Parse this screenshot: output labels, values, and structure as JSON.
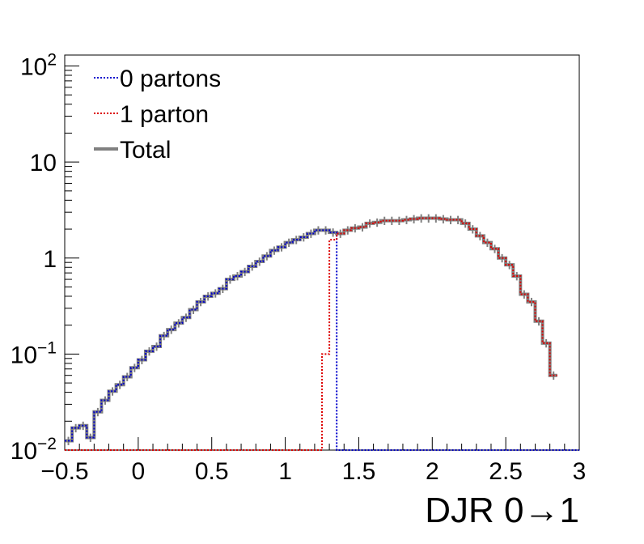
{
  "chart_data": {
    "type": "line",
    "title": "",
    "xlabel": "DJR 0→1",
    "ylabel": "",
    "xlim": [
      -0.5,
      3
    ],
    "ylim": [
      0.01,
      130
    ],
    "yscale": "log",
    "grid": false,
    "legend_position": "top-left",
    "x_ticks": [
      "−0.5",
      "0",
      "0.5",
      "1",
      "1.5",
      "2",
      "2.5",
      "3"
    ],
    "x_tick_values": [
      -0.5,
      0,
      0.5,
      1,
      1.5,
      2,
      2.5,
      3
    ],
    "y_ticks": [
      {
        "value": 0.01,
        "base": "10",
        "exp": "−2"
      },
      {
        "value": 0.1,
        "base": "10",
        "exp": "−1"
      },
      {
        "value": 1,
        "base": "1",
        "exp": ""
      },
      {
        "value": 10,
        "base": "10",
        "exp": ""
      },
      {
        "value": 100,
        "base": "10",
        "exp": "2"
      }
    ],
    "bin_width": 0.05,
    "series": [
      {
        "name": "0 partons",
        "color": "#0000cc",
        "style": "dotted",
        "x_start": -0.5,
        "values": [
          0.0125,
          0.017,
          0.018,
          0.0135,
          0.025,
          0.033,
          0.041,
          0.048,
          0.058,
          0.072,
          0.087,
          0.107,
          0.12,
          0.155,
          0.18,
          0.21,
          0.24,
          0.29,
          0.35,
          0.4,
          0.43,
          0.48,
          0.6,
          0.65,
          0.72,
          0.82,
          0.92,
          1.05,
          1.2,
          1.3,
          1.45,
          1.55,
          1.65,
          1.8,
          1.95,
          1.95,
          1.85,
          0.01,
          0.01,
          0.01,
          0.01,
          0.01,
          0.01,
          0.01,
          0.01,
          0.01,
          0.01,
          0.01,
          0.01,
          0.01,
          0.01,
          0.01,
          0.01,
          0.01,
          0.01,
          0.01,
          0.01,
          0.01,
          0.01,
          0.01,
          0.01,
          0.01,
          0.01,
          0.01,
          0.01,
          0.01,
          0.01,
          0.01,
          0.01,
          0.01
        ]
      },
      {
        "name": "1 parton",
        "color": "#dd0000",
        "style": "dotted",
        "x_start": -0.5,
        "values": [
          0.01,
          0.01,
          0.01,
          0.01,
          0.01,
          0.01,
          0.01,
          0.01,
          0.01,
          0.01,
          0.01,
          0.01,
          0.01,
          0.01,
          0.01,
          0.01,
          0.01,
          0.01,
          0.01,
          0.01,
          0.01,
          0.01,
          0.01,
          0.01,
          0.01,
          0.01,
          0.01,
          0.01,
          0.01,
          0.01,
          0.01,
          0.01,
          0.01,
          0.01,
          0.01,
          0.1,
          1.55,
          1.8,
          1.95,
          2.05,
          2.1,
          2.3,
          2.35,
          2.45,
          2.45,
          2.45,
          2.5,
          2.55,
          2.6,
          2.6,
          2.6,
          2.55,
          2.5,
          2.5,
          2.3,
          2.0,
          1.7,
          1.45,
          1.25,
          1.0,
          0.85,
          0.65,
          0.42,
          0.35,
          0.22,
          0.13,
          0.06
        ]
      },
      {
        "name": "Total",
        "color": "#808080",
        "style": "solid",
        "x_start": -0.5,
        "values": [
          0.0125,
          0.017,
          0.018,
          0.0135,
          0.025,
          0.033,
          0.041,
          0.048,
          0.058,
          0.072,
          0.087,
          0.107,
          0.12,
          0.155,
          0.18,
          0.21,
          0.24,
          0.29,
          0.35,
          0.4,
          0.43,
          0.48,
          0.6,
          0.65,
          0.72,
          0.82,
          0.92,
          1.05,
          1.2,
          1.3,
          1.45,
          1.55,
          1.65,
          1.8,
          1.95,
          1.95,
          1.85,
          1.8,
          1.95,
          2.05,
          2.1,
          2.3,
          2.35,
          2.45,
          2.45,
          2.45,
          2.5,
          2.55,
          2.6,
          2.6,
          2.6,
          2.55,
          2.5,
          2.5,
          2.3,
          2.0,
          1.7,
          1.45,
          1.25,
          1.0,
          0.85,
          0.65,
          0.42,
          0.35,
          0.22,
          0.13,
          0.06
        ]
      }
    ]
  }
}
